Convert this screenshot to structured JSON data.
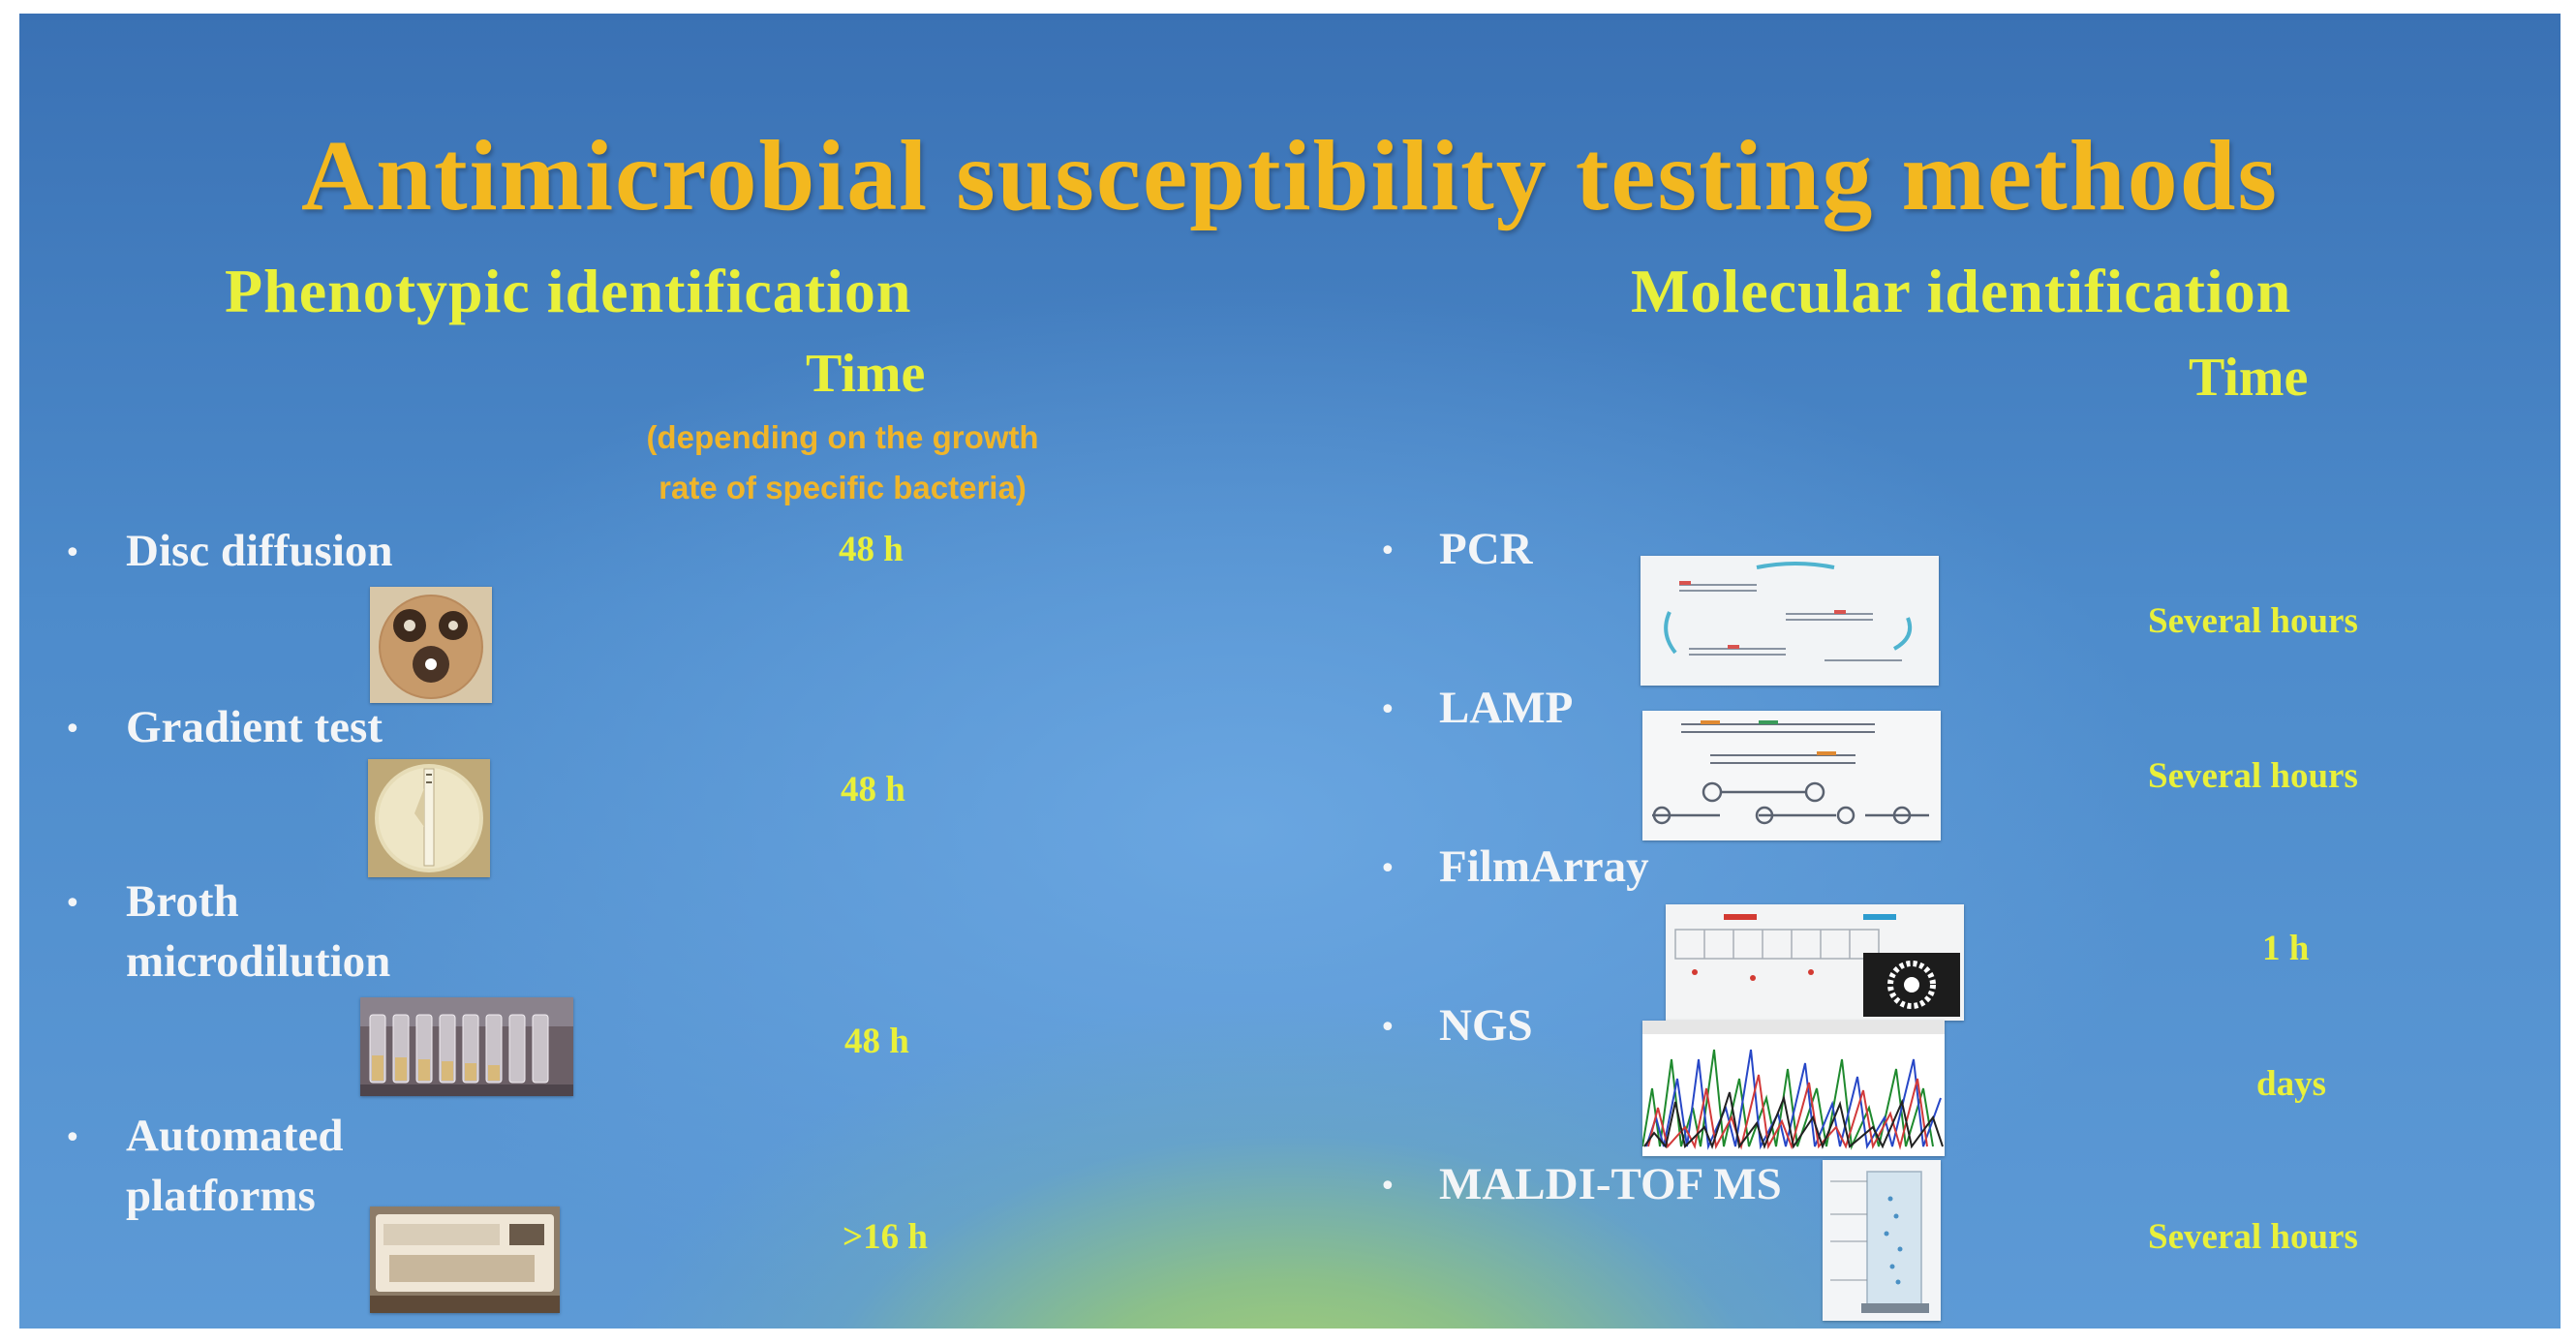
{
  "title": "Antimicrobial susceptibility testing methods",
  "phenotypic": {
    "heading": "Phenotypic identification",
    "time_heading": "Time",
    "time_note_line1": "(depending on the growth",
    "time_note_line2": "rate of specific bacteria)",
    "items": [
      {
        "label": "Disc diffusion",
        "time": "48 h",
        "image": "petri-dish-discs-image"
      },
      {
        "label": "Gradient test",
        "time": "48 h",
        "image": "gradient-strip-plate-image"
      },
      {
        "label_line1": "Broth",
        "label_line2": "microdilution",
        "time": "48 h",
        "image": "microdilution-tubes-image"
      },
      {
        "label_line1": "Automated",
        "label_line2": "platforms",
        "time": ">16 h",
        "image": "automated-instrument-image"
      }
    ]
  },
  "molecular": {
    "heading": "Molecular identification",
    "time_heading": "Time",
    "items": [
      {
        "label": "PCR",
        "time": "Several hours",
        "image": "pcr-cycle-diagram-image"
      },
      {
        "label": "LAMP",
        "time": "Several hours",
        "image": "lamp-amplification-diagram-image"
      },
      {
        "label": "FilmArray",
        "time": "1 h",
        "image": "filmarray-pouch-image"
      },
      {
        "label": "NGS",
        "time": "days",
        "image": "sequencing-chromatogram-image"
      },
      {
        "label": "MALDI-TOF MS",
        "time": "Several hours",
        "image": "maldi-tof-schematic-image"
      }
    ]
  },
  "colors": {
    "title": "#f3b81f",
    "heading": "#e9f03a",
    "note": "#efb52a",
    "item_text": "#f3f5f7",
    "background_top": "#3a71b4",
    "background_glow": "#b0d66c"
  }
}
